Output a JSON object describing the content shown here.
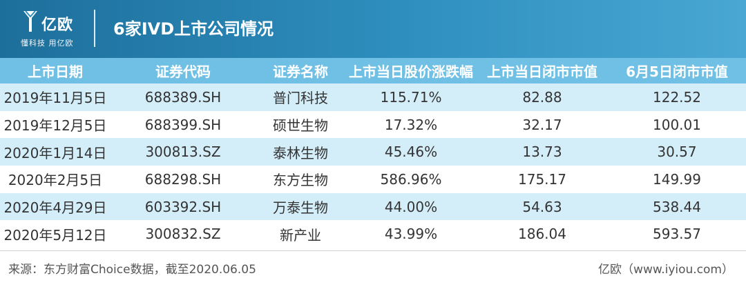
{
  "header": {
    "logo_name": "亿欧",
    "logo_slogan": "懂科技 用亿欧",
    "title": "6家IVD上市公司情况"
  },
  "table": {
    "columns": [
      "上市日期",
      "证券代码",
      "证券名称",
      "上市当日股价涨跌幅",
      "上市当日闭市市值",
      "6月5日闭市市值"
    ],
    "rows": [
      [
        "2019年11月5日",
        "688389.SH",
        "普门科技",
        "115.71%",
        "82.88",
        "122.52"
      ],
      [
        "2019年12月5日",
        "688399.SH",
        "硕世生物",
        "17.32%",
        "32.17",
        "100.01"
      ],
      [
        "2020年1月14日",
        "300813.SZ",
        "泰林生物",
        "45.46%",
        "13.73",
        "30.57"
      ],
      [
        "2020年2月5日",
        "688298.SH",
        "东方生物",
        "586.96%",
        "175.17",
        "149.99"
      ],
      [
        "2020年4月29日",
        "603392.SH",
        "万泰生物",
        "44.00%",
        "54.63",
        "538.44"
      ],
      [
        "2020年5月12日",
        "300832.SZ",
        "新产业",
        "43.99%",
        "186.04",
        "593.57"
      ]
    ]
  },
  "footer": {
    "source": "来源：东方财富Choice数据，截至2020.06.05",
    "credit": "亿欧（www.iyiou.com）"
  },
  "colors": {
    "header_bg": "#2f8fbf",
    "table_head": "#6fc0e4",
    "row_stripe": "#d3edf9"
  }
}
